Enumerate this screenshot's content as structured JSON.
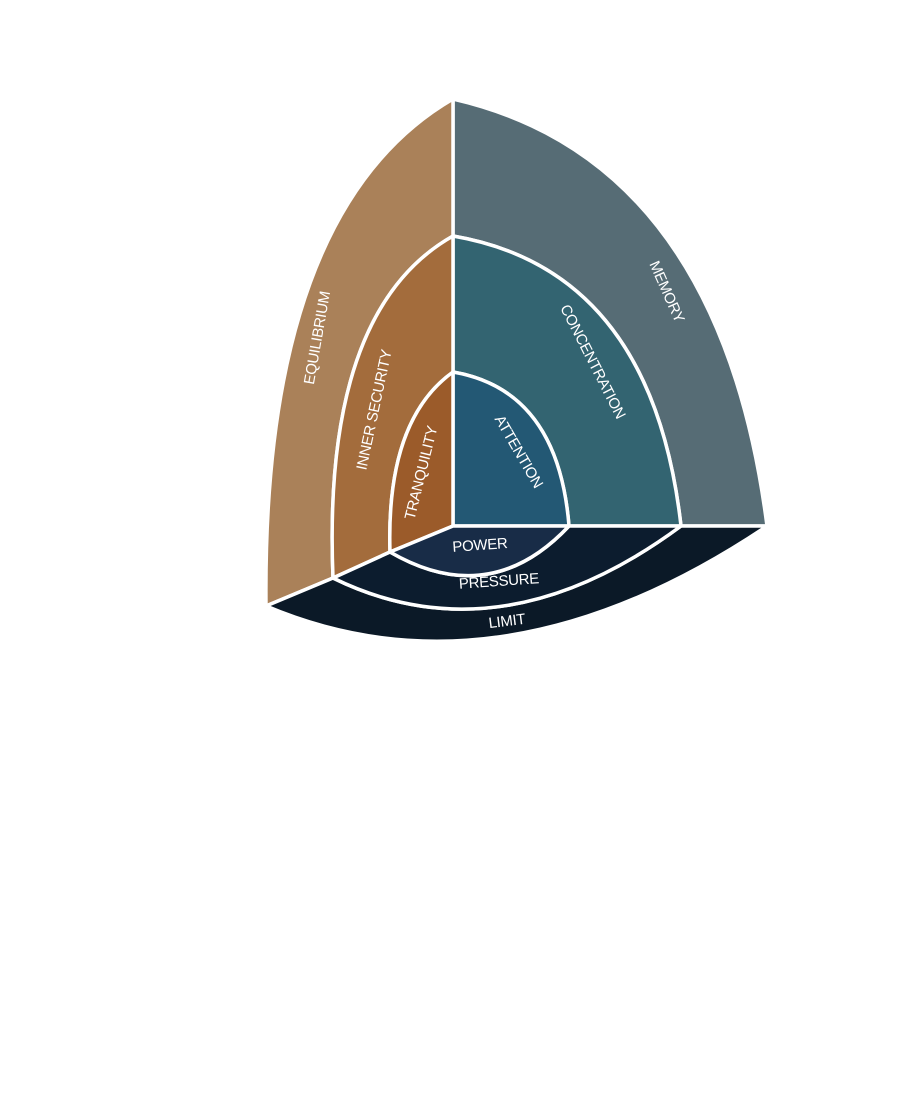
{
  "labels": {
    "memory": "MEMORY",
    "concentration": "CONCENTRATION",
    "attention": "ATTENTION",
    "equilibrium": "EQUILIBRIUM",
    "inner_security": "INNER SECURITY",
    "tranquility": "TRANQUILITY",
    "power": "POWER",
    "pressure": "PRESSURE",
    "limit": "LIMIT"
  },
  "colors": {
    "memory": "#566c75",
    "concentration": "#336471",
    "attention": "#235874",
    "equilibrium": "#aa8159",
    "inner_security": "#a36c3c",
    "tranquility": "#9b5b2a",
    "power": "#182c47",
    "pressure": "#0c1c2e",
    "limit": "#0b1927"
  }
}
